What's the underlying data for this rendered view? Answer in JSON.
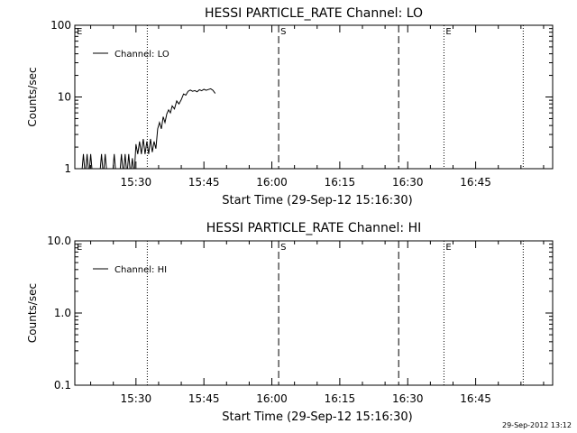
{
  "footer_timestamp": "29-Sep-2012 13:12",
  "chart_data": [
    {
      "type": "line",
      "title": "HESSI PARTICLE_RATE Channel: LO",
      "xlabel": "Start Time (29-Sep-12 15:16:30)",
      "ylabel": "Counts/sec",
      "y_scale": "log",
      "ylim": [
        1,
        100
      ],
      "y_tick_labels": [
        "1",
        "10",
        "100"
      ],
      "y_tick_values": [
        1,
        10,
        100
      ],
      "x_tick_labels": [
        "15:30",
        "15:45",
        "16:00",
        "16:15",
        "16:30",
        "16:45"
      ],
      "x_tick_minutes": [
        930,
        945,
        960,
        975,
        990,
        1005
      ],
      "xlim_minutes": [
        916.5,
        1022
      ],
      "legend": "Channel: LO",
      "legend_position": "top-left",
      "markers": [
        {
          "label": "E",
          "minute": 916.5,
          "style": "none"
        },
        {
          "label": "",
          "minute": 932.5,
          "style": "dotted"
        },
        {
          "label": "S",
          "minute": 961.5,
          "style": "dashed"
        },
        {
          "label": "",
          "minute": 988,
          "style": "dashed"
        },
        {
          "label": "E",
          "minute": 998,
          "style": "dotted"
        },
        {
          "label": "",
          "minute": 1015.5,
          "style": "dotted"
        }
      ],
      "series": [
        {
          "name": "Channel: LO",
          "x_minutes": [
            918,
            918.4,
            918.8,
            919.2,
            919.6,
            920,
            920.4,
            920.8,
            921.2,
            921.6,
            922,
            922.4,
            922.8,
            923.2,
            923.6,
            924,
            924.4,
            924.8,
            925.2,
            925.6,
            926,
            926.4,
            926.8,
            927.2,
            927.6,
            928,
            928.4,
            928.8,
            929.2,
            929.6,
            930,
            930.4,
            930.8,
            931.2,
            931.6,
            932,
            932.4,
            932.8,
            933.2,
            933.6,
            934,
            934.4,
            934.8,
            935.2,
            935.6,
            936,
            936.4,
            936.8,
            937.2,
            937.6,
            938,
            938.5,
            939,
            939.5,
            940,
            940.5,
            941,
            941.5,
            942,
            942.5,
            943,
            943.5,
            944,
            944.5,
            945,
            945.5,
            946,
            946.5,
            947,
            947.5
          ],
          "y_counts": [
            0.8,
            1.6,
            0.8,
            1.6,
            0.8,
            1.6,
            0.8,
            0.8,
            0.8,
            0.8,
            0.8,
            1.6,
            0.8,
            1.6,
            0.8,
            0.8,
            0.8,
            0.8,
            1.6,
            0.8,
            0.8,
            0.8,
            1.6,
            0.8,
            1.6,
            0.8,
            1.6,
            0.8,
            1.4,
            0.8,
            2.2,
            1.6,
            2.4,
            1.6,
            2.6,
            1.6,
            2.4,
            1.6,
            2.6,
            1.7,
            2.4,
            1.9,
            3.6,
            4.4,
            3.6,
            5.3,
            4.4,
            5.8,
            6.6,
            6.0,
            7.5,
            6.8,
            8.8,
            8.0,
            9.2,
            11.0,
            10.6,
            12.0,
            12.5,
            12.0,
            12.3,
            11.8,
            12.6,
            12.2,
            12.8,
            12.4,
            12.7,
            13.0,
            12.4,
            11.2
          ]
        }
      ]
    },
    {
      "type": "line",
      "title": "HESSI PARTICLE_RATE Channel: HI",
      "xlabel": "Start Time (29-Sep-12 15:16:30)",
      "ylabel": "Counts/sec",
      "y_scale": "log",
      "ylim": [
        0.1,
        10
      ],
      "y_tick_labels": [
        "0.1",
        "1.0",
        "10.0"
      ],
      "y_tick_values": [
        0.1,
        1,
        10
      ],
      "x_tick_labels": [
        "15:30",
        "15:45",
        "16:00",
        "16:15",
        "16:30",
        "16:45"
      ],
      "x_tick_minutes": [
        930,
        945,
        960,
        975,
        990,
        1005
      ],
      "xlim_minutes": [
        916.5,
        1022
      ],
      "legend": "Channel: HI",
      "legend_position": "top-left",
      "markers": [
        {
          "label": "E",
          "minute": 916.5,
          "style": "none"
        },
        {
          "label": "",
          "minute": 932.5,
          "style": "dotted"
        },
        {
          "label": "S",
          "minute": 961.5,
          "style": "dashed"
        },
        {
          "label": "",
          "minute": 988,
          "style": "dashed"
        },
        {
          "label": "E",
          "minute": 998,
          "style": "dotted"
        },
        {
          "label": "",
          "minute": 1015.5,
          "style": "dotted"
        }
      ],
      "series": [
        {
          "name": "Channel: HI",
          "x_minutes": [],
          "y_counts": []
        }
      ]
    }
  ]
}
